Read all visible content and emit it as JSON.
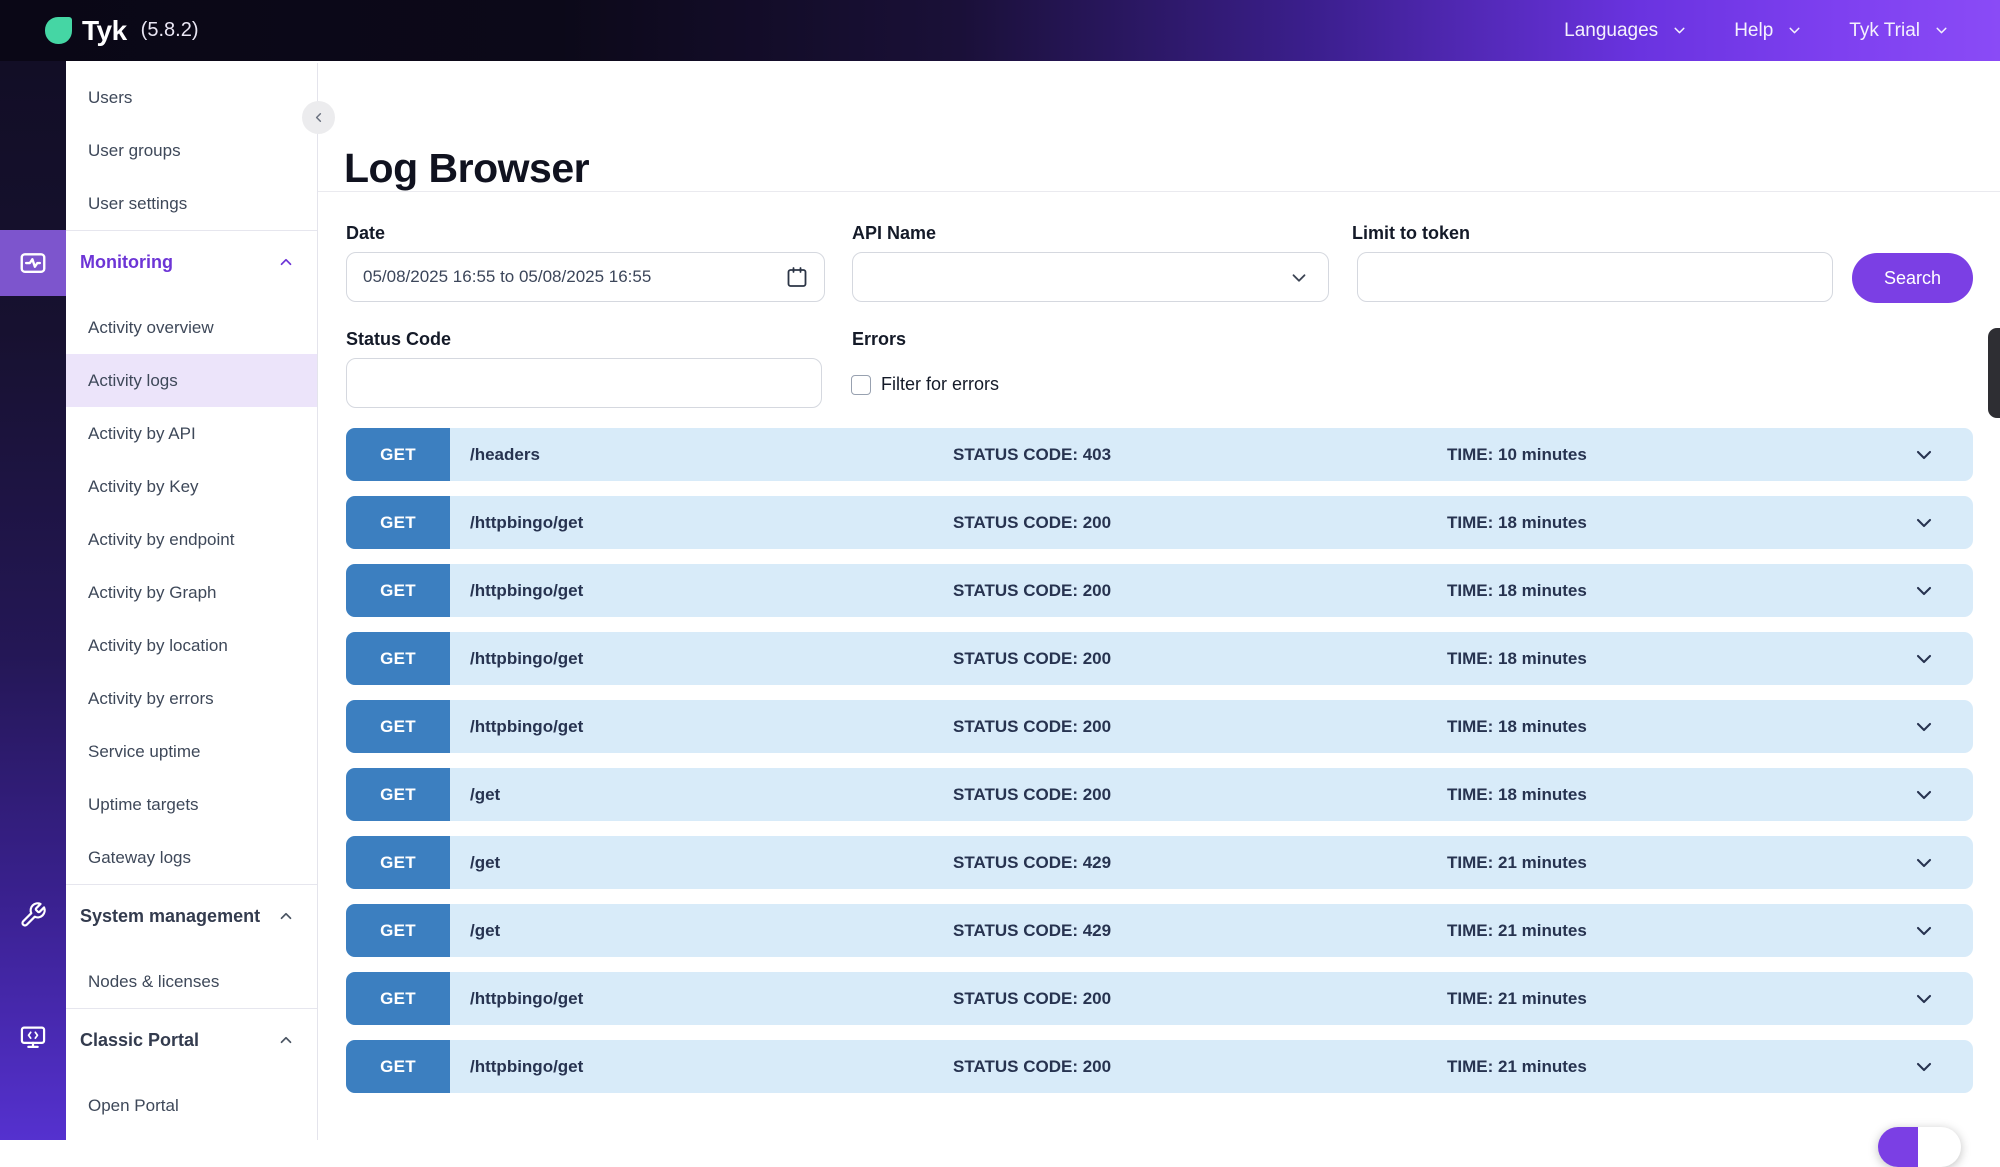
{
  "brand": {
    "logo_text": "Tyk",
    "version": "(5.8.2)"
  },
  "topbar": {
    "items": [
      {
        "label": "Languages"
      },
      {
        "label": "Help"
      },
      {
        "label": "Tyk Trial"
      }
    ]
  },
  "sidebar": {
    "top_items": [
      "Users",
      "User groups",
      "User settings"
    ],
    "sections": [
      {
        "label": "Monitoring",
        "accent": true,
        "expanded": true,
        "items": [
          "Activity overview",
          "Activity logs",
          "Activity by API",
          "Activity by Key",
          "Activity by endpoint",
          "Activity by Graph",
          "Activity by location",
          "Activity by errors",
          "Service uptime",
          "Uptime targets",
          "Gateway logs"
        ],
        "active_item": "Activity logs"
      },
      {
        "label": "System management",
        "accent": false,
        "expanded": true,
        "items": [
          "Nodes & licenses"
        ],
        "active_item": ""
      },
      {
        "label": "Classic Portal",
        "accent": false,
        "expanded": true,
        "items": [
          "Open Portal"
        ],
        "active_item": ""
      }
    ]
  },
  "page": {
    "title": "Log Browser"
  },
  "filters": {
    "date": {
      "label": "Date",
      "value": "05/08/2025 16:55 to 05/08/2025 16:55"
    },
    "api_name": {
      "label": "API Name",
      "value": ""
    },
    "limit_to_token": {
      "label": "Limit to token",
      "value": "",
      "placeholder": ""
    },
    "search_label": "Search",
    "status_code": {
      "label": "Status Code",
      "value": "",
      "placeholder": ""
    },
    "errors": {
      "label": "Errors",
      "checkbox_label": "Filter for errors",
      "checked": false
    }
  },
  "logs": {
    "rows": [
      {
        "method": "GET",
        "path": "/headers",
        "status": "STATUS CODE: 403",
        "time": "TIME: 10 minutes"
      },
      {
        "method": "GET",
        "path": "/httpbingo/get",
        "status": "STATUS CODE: 200",
        "time": "TIME: 18 minutes"
      },
      {
        "method": "GET",
        "path": "/httpbingo/get",
        "status": "STATUS CODE: 200",
        "time": "TIME: 18 minutes"
      },
      {
        "method": "GET",
        "path": "/httpbingo/get",
        "status": "STATUS CODE: 200",
        "time": "TIME: 18 minutes"
      },
      {
        "method": "GET",
        "path": "/httpbingo/get",
        "status": "STATUS CODE: 200",
        "time": "TIME: 18 minutes"
      },
      {
        "method": "GET",
        "path": "/get",
        "status": "STATUS CODE: 200",
        "time": "TIME: 18 minutes"
      },
      {
        "method": "GET",
        "path": "/get",
        "status": "STATUS CODE: 429",
        "time": "TIME: 21 minutes"
      },
      {
        "method": "GET",
        "path": "/get",
        "status": "STATUS CODE: 429",
        "time": "TIME: 21 minutes"
      },
      {
        "method": "GET",
        "path": "/httpbingo/get",
        "status": "STATUS CODE: 200",
        "time": "TIME: 21 minutes"
      },
      {
        "method": "GET",
        "path": "/httpbingo/get",
        "status": "STATUS CODE: 200",
        "time": "TIME: 21 minutes"
      }
    ]
  },
  "colors": {
    "accent_purple": "#7b3fe4",
    "rail_active_purple": "#7d55cd",
    "badge_blue": "#3c7fc0",
    "row_bg_blue": "#d8ebf9",
    "logo_green": "#45d6a4",
    "sidebar_active_bg": "#ece4fa"
  }
}
